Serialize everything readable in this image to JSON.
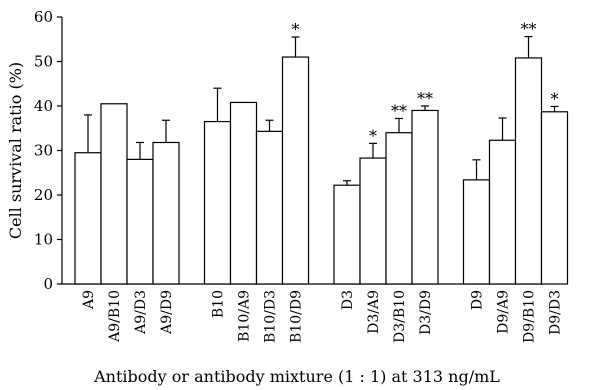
{
  "chart_data": {
    "type": "bar",
    "xlabel": "Antibody or antibody mixture (1 : 1) at 313 ng/mL",
    "ylabel": "Cell survival ratio (%)",
    "ylim": [
      0,
      60
    ],
    "yticks": [
      0,
      10,
      20,
      30,
      40,
      50,
      60
    ],
    "groups": [
      {
        "bars": [
          {
            "label": "A9",
            "value": 29.5,
            "error": 8.5,
            "sig": ""
          },
          {
            "label": "A9/B10",
            "value": 40.5,
            "error": 0,
            "sig": ""
          },
          {
            "label": "A9/D3",
            "value": 28.0,
            "error": 3.8,
            "sig": ""
          },
          {
            "label": "A9/D9",
            "value": 31.8,
            "error": 5.0,
            "sig": ""
          }
        ]
      },
      {
        "bars": [
          {
            "label": "B10",
            "value": 36.5,
            "error": 7.5,
            "sig": ""
          },
          {
            "label": "B10/A9",
            "value": 40.8,
            "error": 0,
            "sig": ""
          },
          {
            "label": "B10/D3",
            "value": 34.3,
            "error": 2.5,
            "sig": ""
          },
          {
            "label": "B10/D9",
            "value": 51.0,
            "error": 4.5,
            "sig": "*"
          }
        ]
      },
      {
        "bars": [
          {
            "label": "D3",
            "value": 22.2,
            "error": 1.0,
            "sig": ""
          },
          {
            "label": "D3/A9",
            "value": 28.3,
            "error": 3.3,
            "sig": "*"
          },
          {
            "label": "D3/B10",
            "value": 34.0,
            "error": 3.2,
            "sig": "**"
          },
          {
            "label": "D3/D9",
            "value": 39.0,
            "error": 1.0,
            "sig": "**"
          }
        ]
      },
      {
        "bars": [
          {
            "label": "D9",
            "value": 23.4,
            "error": 4.5,
            "sig": ""
          },
          {
            "label": "D9/A9",
            "value": 32.3,
            "error": 5.0,
            "sig": ""
          },
          {
            "label": "D9/B10",
            "value": 50.8,
            "error": 4.8,
            "sig": "**"
          },
          {
            "label": "D9/D3",
            "value": 38.7,
            "error": 1.2,
            "sig": "*"
          }
        ]
      }
    ]
  }
}
